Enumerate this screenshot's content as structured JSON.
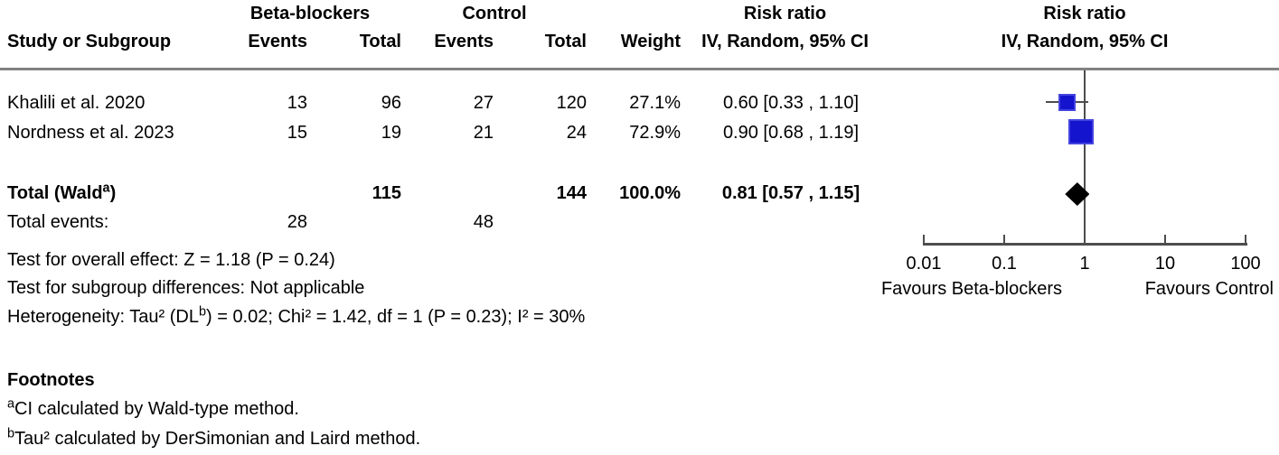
{
  "header": {
    "group_treatment": "Beta-blockers",
    "group_control": "Control",
    "col_study": "Study or Subgroup",
    "col_events": "Events",
    "col_total": "Total",
    "col_weight": "Weight",
    "col_risk_ratio": "Risk ratio",
    "col_effect_method": "IV, Random, 95% CI",
    "col_plot_risk_ratio": "Risk ratio",
    "col_plot_effect_method": "IV, Random, 95% CI"
  },
  "rows": [
    {
      "study": "Khalili et al. 2020",
      "events_t": "13",
      "total_t": "96",
      "events_c": "27",
      "total_c": "120",
      "weight": "27.1%",
      "estimate": "0.60 [0.33 , 1.10]"
    },
    {
      "study": "Nordness et al. 2023",
      "events_t": "15",
      "total_t": "19",
      "events_c": "21",
      "total_c": "24",
      "weight": "72.9%",
      "estimate": "0.90 [0.68 , 1.19]"
    }
  ],
  "totals": {
    "label_pre": "Total (Wald",
    "label_sup": "a",
    "label_post": ")",
    "total_t": "115",
    "total_c": "144",
    "weight": "100.0%",
    "estimate": "0.81 [0.57 , 1.15]",
    "events_label": "Total events:",
    "events_t": "28",
    "events_c": "48"
  },
  "stats": {
    "overall": "Test for overall effect: Z = 1.18 (P = 0.24)",
    "subgroup": "Test for subgroup differences: Not applicable",
    "het_pre": "Heterogeneity: Tau² (DL",
    "het_sup": "b",
    "het_post": ") = 0.02; Chi² = 1.42, df = 1 (P = 0.23); I² = 30%"
  },
  "footnotes": {
    "title": "Footnotes",
    "items": [
      {
        "sup": "a",
        "text": "CI calculated by Wald-type method."
      },
      {
        "sup": "b",
        "text": "Tau² calculated by DerSimonian and Laird method."
      }
    ]
  },
  "chart_data": {
    "type": "forest",
    "effect_measure": "Risk ratio",
    "model": "IV, Random, 95% CI",
    "x_scale": "log10",
    "x_ticks": [
      0.01,
      0.1,
      1,
      10,
      100
    ],
    "x_tick_labels": [
      "0.01",
      "0.1",
      "1",
      "10",
      "100"
    ],
    "null_line": 1,
    "favours_left": "Favours Beta-blockers",
    "favours_right": "Favours Control",
    "studies": [
      {
        "name": "Khalili et al. 2020",
        "rr": 0.6,
        "ci_low": 0.33,
        "ci_high": 1.1,
        "weight_pct": 27.1
      },
      {
        "name": "Nordness et al. 2023",
        "rr": 0.9,
        "ci_low": 0.68,
        "ci_high": 1.19,
        "weight_pct": 72.9
      }
    ],
    "total": {
      "label": "Total (Wald a)",
      "rr": 0.81,
      "ci_low": 0.57,
      "ci_high": 1.15,
      "weight_pct": 100.0
    }
  },
  "colors": {
    "marker_blue": "#1413cd",
    "diamond_black": "#000000",
    "plot_line_gray": "#4d4d4d",
    "divider_gray": "#828282"
  }
}
